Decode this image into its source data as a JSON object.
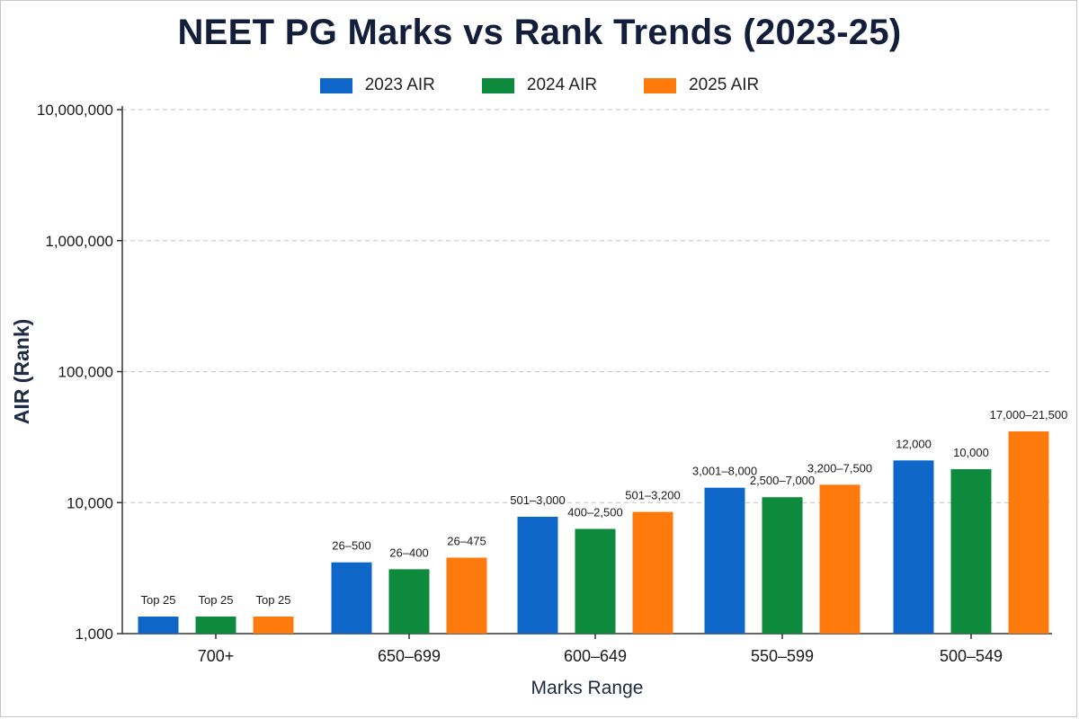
{
  "chart_data": {
    "type": "bar",
    "title": "NEET PG Marks vs Rank Trends (2023-25)",
    "xlabel": "Marks Range",
    "ylabel": "AIR (Rank)",
    "yscale": "log",
    "ylim": [
      1000,
      10000000
    ],
    "yticks": [
      {
        "value": 1000,
        "label": "1,000"
      },
      {
        "value": 10000,
        "label": "10,000"
      },
      {
        "value": 100000,
        "label": "100,000"
      },
      {
        "value": 1000000,
        "label": "1,000,000"
      },
      {
        "value": 10000000,
        "label": "10,000,000"
      }
    ],
    "grid": true,
    "legend_position": "top-center",
    "categories": [
      "700+",
      "650–699",
      "600–649",
      "550–599",
      "500–549"
    ],
    "series": [
      {
        "name": "2023 AIR",
        "color": "#0f66c9",
        "values": [
          1350,
          3500,
          7800,
          13000,
          21000
        ],
        "labels": [
          "Top 25",
          "26–500",
          "501–3,000",
          "3,001–8,000",
          "12,000"
        ]
      },
      {
        "name": "2024 AIR",
        "color": "#0e8a3c",
        "values": [
          1350,
          3100,
          6300,
          11000,
          18000
        ],
        "labels": [
          "Top 25",
          "26–400",
          "400–2,500",
          "2,500–7,000",
          "10,000"
        ]
      },
      {
        "name": "2025 AIR",
        "color": "#ff7a0d",
        "values": [
          1350,
          3800,
          8500,
          13700,
          35000
        ],
        "labels": [
          "Top 25",
          "26–475",
          "501–3,200",
          "3,200–7,500",
          "17,000–21,500"
        ]
      }
    ]
  }
}
